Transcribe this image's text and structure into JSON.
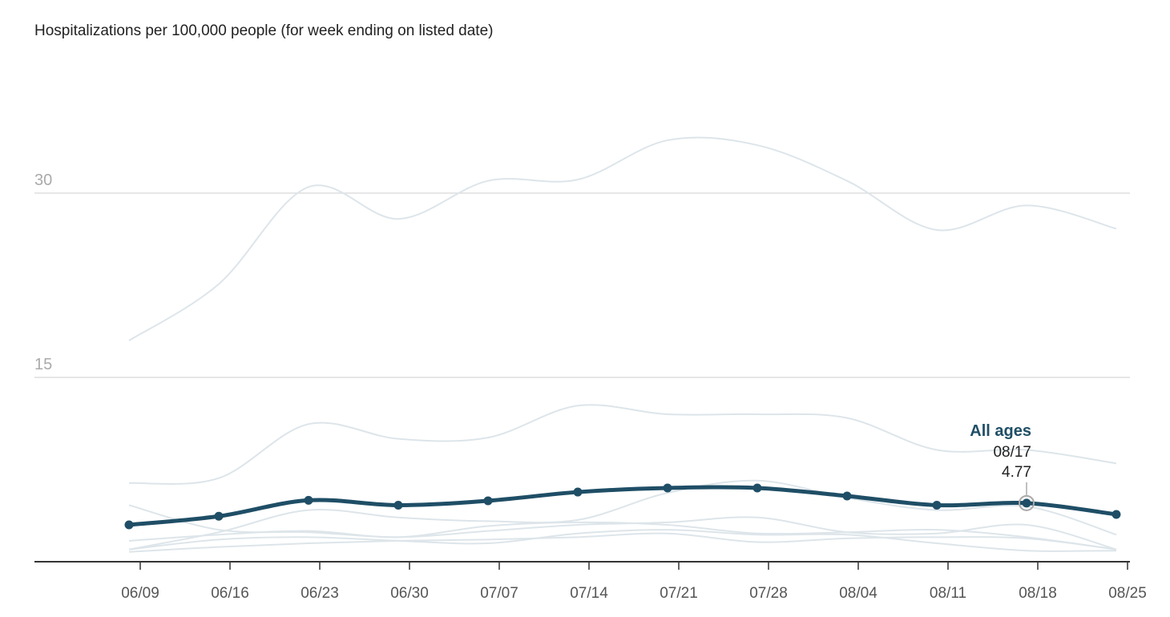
{
  "chart_data": {
    "type": "line",
    "title": "Hospitalizations per 100,000 people (for week ending on listed date)",
    "xlabel": "",
    "ylabel": "",
    "ylim": [
      0,
      30
    ],
    "y_ticks": [
      "15",
      "30"
    ],
    "y_tick_values": [
      15,
      30
    ],
    "x_tick_labels": [
      "06/09",
      "06/16",
      "06/23",
      "06/30",
      "07/07",
      "07/14",
      "07/21",
      "07/28",
      "08/04",
      "08/11",
      "08/18",
      "08/25"
    ],
    "x_points": [
      "06/08",
      "06/15",
      "06/22",
      "06/29",
      "07/06",
      "07/13",
      "07/20",
      "07/27",
      "08/03",
      "08/10",
      "08/17",
      "08/24"
    ],
    "highlight_series": {
      "name": "All ages",
      "color": "#1f4e66",
      "values": [
        3.0,
        3.7,
        5.0,
        4.6,
        4.96,
        5.67,
        6.0,
        6.0,
        5.35,
        4.6,
        4.77,
        3.85
      ]
    },
    "background_series": [
      {
        "values": [
          18.0,
          22.6,
          30.5,
          27.9,
          31.0,
          31.1,
          34.3,
          33.9,
          31.0,
          27.0,
          29.0,
          27.1
        ]
      },
      {
        "values": [
          6.4,
          6.8,
          11.2,
          10.0,
          10.1,
          12.7,
          12.0,
          12.0,
          11.7,
          9.1,
          9.1,
          8.0
        ]
      },
      {
        "values": [
          4.6,
          2.6,
          2.4,
          2.0,
          2.5,
          3.0,
          3.2,
          3.6,
          2.4,
          2.3,
          3.0,
          1.0
        ]
      },
      {
        "values": [
          1.0,
          2.4,
          4.2,
          3.6,
          3.3,
          3.4,
          5.6,
          6.6,
          5.2,
          4.2,
          4.5,
          2.2
        ]
      },
      {
        "values": [
          1.7,
          2.2,
          2.5,
          2.0,
          2.9,
          3.2,
          3.0,
          2.3,
          2.4,
          2.6,
          2.0,
          1.0
        ]
      },
      {
        "values": [
          1.0,
          1.8,
          2.0,
          1.7,
          1.5,
          2.3,
          2.6,
          2.2,
          2.2,
          1.5,
          0.9,
          0.9
        ]
      },
      {
        "values": [
          0.8,
          1.2,
          1.5,
          1.7,
          1.8,
          2.0,
          2.3,
          1.6,
          1.9,
          2.0,
          1.9,
          1.0
        ]
      }
    ],
    "tooltip": {
      "series": "All ages",
      "date": "08/17",
      "value": "4.77"
    }
  }
}
